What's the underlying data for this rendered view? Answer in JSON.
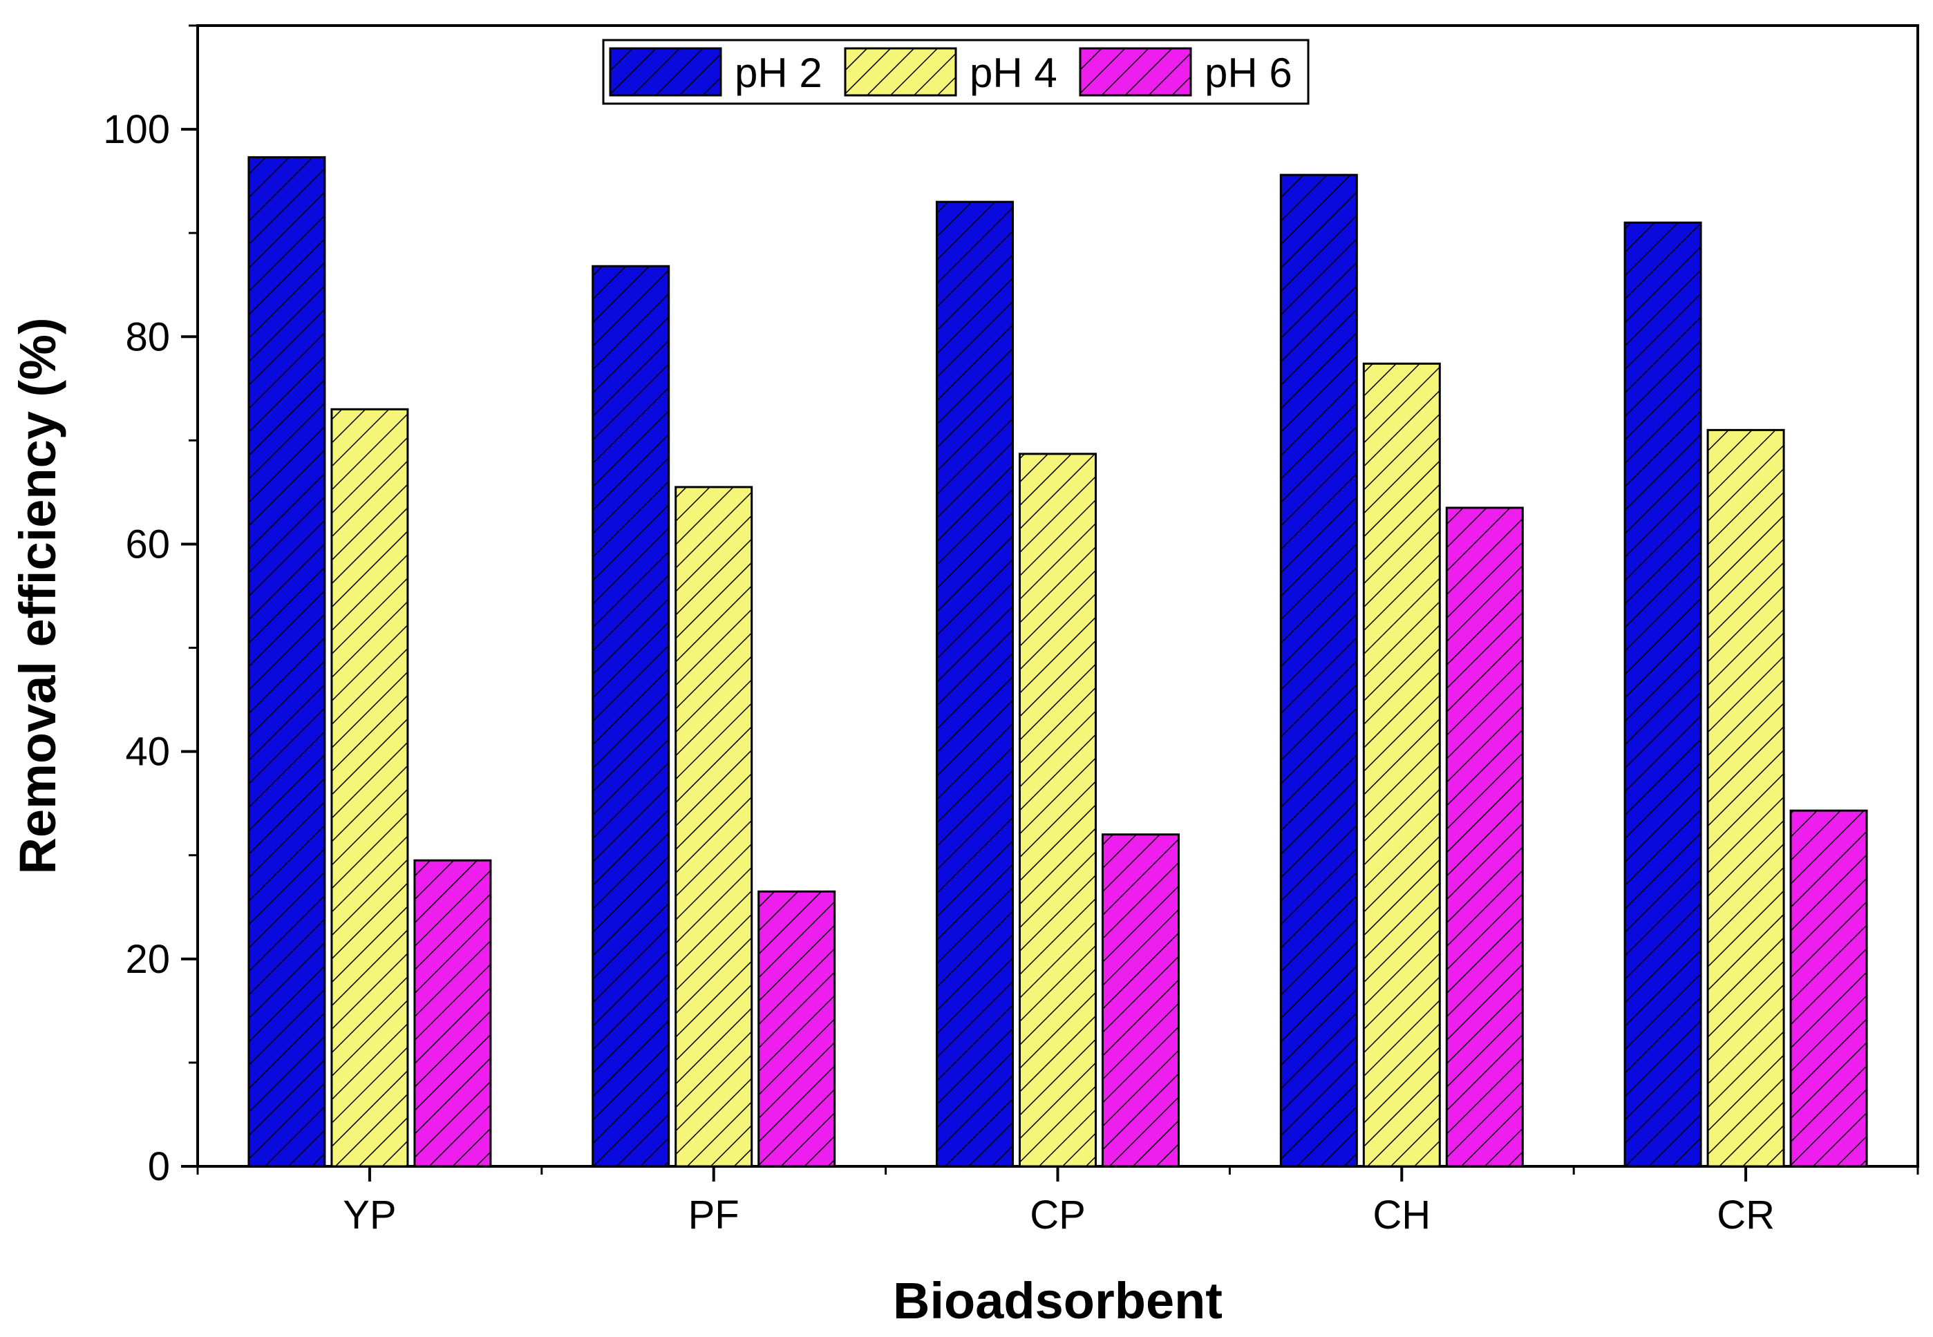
{
  "chart_data": {
    "type": "bar",
    "title": "",
    "xlabel": "Bioadsorbent",
    "ylabel": "Removal efficiency (%)",
    "categories": [
      "YP",
      "PF",
      "CP",
      "CH",
      "CR"
    ],
    "ylim": [
      0,
      110
    ],
    "yticks": [
      0,
      20,
      40,
      60,
      80,
      100
    ],
    "y_tick_labels": [
      "0",
      "20",
      "40",
      "60",
      "80",
      "100"
    ],
    "series": [
      {
        "name": "pH 2",
        "color": "#0a0adf",
        "values": [
          97.3,
          86.8,
          93.0,
          95.6,
          91.0
        ]
      },
      {
        "name": "pH 4",
        "color": "#f5f57a",
        "values": [
          73.0,
          65.5,
          68.7,
          77.4,
          71.0
        ]
      },
      {
        "name": "pH 6",
        "color": "#ee1fee",
        "values": [
          29.5,
          26.5,
          32.0,
          63.5,
          34.3
        ]
      }
    ],
    "legend_position": "top-center",
    "bar_pattern": "diagonal-hatch"
  }
}
